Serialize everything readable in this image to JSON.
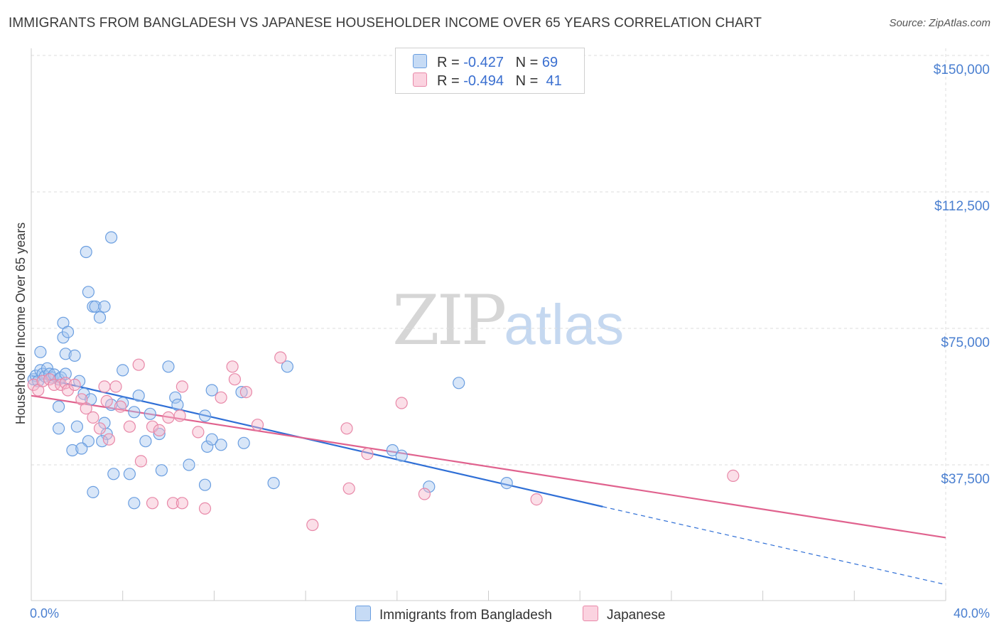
{
  "header": {
    "title": "IMMIGRANTS FROM BANGLADESH VS JAPANESE HOUSEHOLDER INCOME OVER 65 YEARS CORRELATION CHART",
    "source": "Source: ZipAtlas.com"
  },
  "watermark": {
    "zip": "ZIP",
    "atlas": "atlas"
  },
  "legend": {
    "rows": [
      {
        "r_label": "R =",
        "r_value": "-0.427",
        "n_label": "N =",
        "n_value": "69",
        "color": "#a9c8f0"
      },
      {
        "r_label": "R =",
        "r_value": "-0.494",
        "n_label": "N =",
        "n_value": "41",
        "color": "#f6b8cc"
      }
    ]
  },
  "bottom_legend": {
    "items": [
      {
        "label": "Immigrants from Bangladesh",
        "color": "#a9c8f0"
      },
      {
        "label": "Japanese",
        "color": "#f6b8cc"
      }
    ]
  },
  "chart_data": {
    "type": "scatter",
    "title": "IMMIGRANTS FROM BANGLADESH VS JAPANESE HOUSEHOLDER INCOME OVER 65 YEARS CORRELATION CHART",
    "xlabel": "",
    "ylabel": "Householder Income Over 65 years",
    "xlim": [
      0,
      40
    ],
    "ylim": [
      0,
      156000
    ],
    "x_tick_labels": [
      "0.0%",
      "40.0%"
    ],
    "y_ticks": [
      37500,
      75000,
      112500,
      150000
    ],
    "y_tick_labels": [
      "$37,500",
      "$75,000",
      "$112,500",
      "$150,000"
    ],
    "grid": true,
    "series": [
      {
        "name": "Immigrants from Bangladesh",
        "color": "#6a9ee0",
        "fill": "#a9c8f0",
        "line_color": "#2f6fd6",
        "trend": {
          "x0": 0,
          "y0": 62000,
          "x1": 25,
          "y1": 26000,
          "dashed_to_x": 40,
          "dashed_to_y": 4600
        },
        "points": [
          [
            0.1,
            61000
          ],
          [
            0.2,
            62000
          ],
          [
            0.3,
            60500
          ],
          [
            0.4,
            63500
          ],
          [
            0.5,
            62500
          ],
          [
            0.6,
            61800
          ],
          [
            0.4,
            68500
          ],
          [
            0.7,
            64000
          ],
          [
            0.8,
            62500
          ],
          [
            0.9,
            61500
          ],
          [
            1.0,
            62300
          ],
          [
            1.2,
            61000
          ],
          [
            1.3,
            61500
          ],
          [
            1.5,
            62500
          ],
          [
            1.4,
            72500
          ],
          [
            1.4,
            76500
          ],
          [
            1.6,
            74000
          ],
          [
            1.5,
            68000
          ],
          [
            1.9,
            67500
          ],
          [
            2.1,
            60500
          ],
          [
            2.3,
            57000
          ],
          [
            2.6,
            55500
          ],
          [
            1.2,
            53500
          ],
          [
            1.2,
            47500
          ],
          [
            2.0,
            48000
          ],
          [
            2.5,
            44000
          ],
          [
            1.8,
            41500
          ],
          [
            2.2,
            42000
          ],
          [
            2.4,
            96000
          ],
          [
            2.5,
            85000
          ],
          [
            2.7,
            81000
          ],
          [
            2.8,
            81000
          ],
          [
            3.2,
            81000
          ],
          [
            3.0,
            78000
          ],
          [
            3.5,
            100000
          ],
          [
            3.2,
            49000
          ],
          [
            3.3,
            46000
          ],
          [
            3.1,
            44000
          ],
          [
            3.5,
            54000
          ],
          [
            3.6,
            35000
          ],
          [
            2.7,
            30000
          ],
          [
            4.0,
            63500
          ],
          [
            4.0,
            54500
          ],
          [
            4.3,
            35000
          ],
          [
            4.5,
            27000
          ],
          [
            4.5,
            52000
          ],
          [
            4.7,
            56500
          ],
          [
            5.0,
            44000
          ],
          [
            5.2,
            51500
          ],
          [
            5.6,
            46000
          ],
          [
            5.7,
            36000
          ],
          [
            6.0,
            64500
          ],
          [
            6.3,
            56000
          ],
          [
            6.4,
            54000
          ],
          [
            6.9,
            37500
          ],
          [
            7.6,
            32000
          ],
          [
            7.6,
            51000
          ],
          [
            7.7,
            42500
          ],
          [
            7.9,
            58000
          ],
          [
            7.9,
            44500
          ],
          [
            8.3,
            43000
          ],
          [
            9.2,
            57500
          ],
          [
            9.3,
            43500
          ],
          [
            10.6,
            32500
          ],
          [
            11.2,
            64500
          ],
          [
            15.8,
            41500
          ],
          [
            16.2,
            40000
          ],
          [
            17.4,
            31500
          ],
          [
            18.7,
            60000
          ],
          [
            20.8,
            32500
          ]
        ]
      },
      {
        "name": "Japanese",
        "color": "#e888a8",
        "fill": "#f6b8cc",
        "line_color": "#e0628e",
        "trend": {
          "x0": 0,
          "y0": 56500,
          "x1": 40,
          "y1": 17500
        },
        "points": [
          [
            0.1,
            59500
          ],
          [
            0.3,
            58000
          ],
          [
            0.5,
            60500
          ],
          [
            0.8,
            61000
          ],
          [
            1.0,
            59500
          ],
          [
            1.3,
            59500
          ],
          [
            1.5,
            60000
          ],
          [
            1.6,
            58000
          ],
          [
            1.9,
            59500
          ],
          [
            2.2,
            55500
          ],
          [
            2.4,
            53000
          ],
          [
            2.7,
            50500
          ],
          [
            3.0,
            47500
          ],
          [
            3.2,
            59000
          ],
          [
            3.3,
            55000
          ],
          [
            3.4,
            44500
          ],
          [
            3.7,
            59000
          ],
          [
            3.9,
            53500
          ],
          [
            4.3,
            48000
          ],
          [
            4.7,
            65000
          ],
          [
            4.8,
            38500
          ],
          [
            5.3,
            27000
          ],
          [
            5.3,
            48000
          ],
          [
            5.6,
            47000
          ],
          [
            6.0,
            50500
          ],
          [
            6.2,
            27000
          ],
          [
            6.5,
            51000
          ],
          [
            6.6,
            59000
          ],
          [
            6.6,
            27000
          ],
          [
            7.3,
            46500
          ],
          [
            7.6,
            25500
          ],
          [
            8.3,
            56000
          ],
          [
            8.8,
            64500
          ],
          [
            8.9,
            61000
          ],
          [
            9.4,
            57500
          ],
          [
            9.9,
            48500
          ],
          [
            10.9,
            67000
          ],
          [
            12.3,
            21000
          ],
          [
            13.8,
            47500
          ],
          [
            13.9,
            31000
          ],
          [
            14.7,
            40500
          ],
          [
            16.2,
            54500
          ],
          [
            17.2,
            29500
          ],
          [
            22.1,
            28000
          ],
          [
            30.7,
            34500
          ]
        ]
      }
    ]
  }
}
